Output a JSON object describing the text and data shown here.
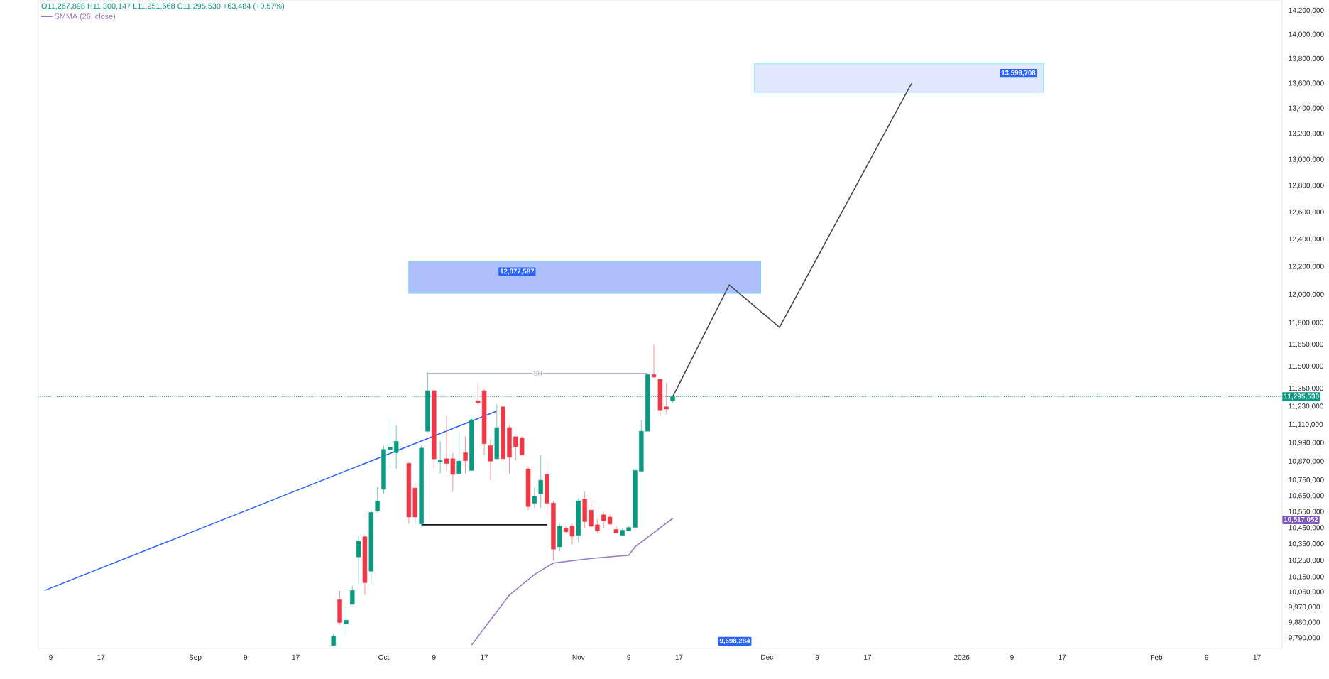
{
  "chart_data": {
    "type": "candlestick",
    "subtitle": "O11,267,898 H11,300,147 L11,251,668 C11,295,530 +63,484 (+0.57%)",
    "x": [
      "2025-09-23",
      "2025-09-24",
      "2025-09-25",
      "2025-09-26",
      "2025-09-27",
      "2025-09-28",
      "2025-09-29",
      "2025-09-30",
      "2025-10-01",
      "2025-10-02",
      "2025-10-03",
      "2025-10-05",
      "2025-10-06",
      "2025-10-07",
      "2025-10-08",
      "2025-10-09",
      "2025-10-10",
      "2025-10-11",
      "2025-10-12",
      "2025-10-13",
      "2025-10-14",
      "2025-10-15",
      "2025-10-16",
      "2025-10-17",
      "2025-10-18",
      "2025-10-19",
      "2025-10-20",
      "2025-10-21",
      "2025-10-22",
      "2025-10-23",
      "2025-10-24",
      "2025-10-25",
      "2025-10-26",
      "2025-10-27",
      "2025-10-28",
      "2025-10-29",
      "2025-10-30",
      "2025-10-31",
      "2025-11-01",
      "2025-11-02",
      "2025-11-03",
      "2025-11-04",
      "2025-11-05",
      "2025-11-06",
      "2025-11-07",
      "2025-11-08",
      "2025-11-09",
      "2025-11-10",
      "2025-11-11",
      "2025-11-12",
      "2025-11-13",
      "2025-11-14",
      "2025-11-15",
      "2025-11-16"
    ],
    "ohlc": [
      [
        9747000,
        9814000,
        9747000,
        9800000
      ],
      [
        10015000,
        10070000,
        9867000,
        9881000
      ],
      [
        9873000,
        9974000,
        9800000,
        9894000
      ],
      [
        9988000,
        10098000,
        9988000,
        10070000
      ],
      [
        10272000,
        10405000,
        10112000,
        10368000
      ],
      [
        10396000,
        10405000,
        10043000,
        10117000
      ],
      [
        10186000,
        10561000,
        10112000,
        10547000
      ],
      [
        10555000,
        10706000,
        10547000,
        10619000
      ],
      [
        10692000,
        10972000,
        10663000,
        10948000
      ],
      [
        10948000,
        11152000,
        10837000,
        10963000
      ],
      [
        10927000,
        11106000,
        10822000,
        11001000
      ],
      [
        10858000,
        10867000,
        10475000,
        10518000
      ],
      [
        10700000,
        10735000,
        10475000,
        10518000
      ],
      [
        10475000,
        10972000,
        10461000,
        10957000
      ],
      [
        11067000,
        11460000,
        11061000,
        11336000
      ],
      [
        11336000,
        11342000,
        10822000,
        10887000
      ],
      [
        10867000,
        11001000,
        10793000,
        10876000
      ],
      [
        10888000,
        11167000,
        10808000,
        10858000
      ],
      [
        10888000,
        10927000,
        10677000,
        10787000
      ],
      [
        10793000,
        11061000,
        10793000,
        10873000
      ],
      [
        10927000,
        11031000,
        10793000,
        10876000
      ],
      [
        10813000,
        11152000,
        10813000,
        11142000
      ],
      [
        11268000,
        11388000,
        11244000,
        11253000
      ],
      [
        11336000,
        11351000,
        10912000,
        10986000
      ],
      [
        10972000,
        11016000,
        10750000,
        10873000
      ],
      [
        10888000,
        11244000,
        10882000,
        11091000
      ],
      [
        11228000,
        11228000,
        10867000,
        10888000
      ],
      [
        11091000,
        11106000,
        10793000,
        10897000
      ],
      [
        11031000,
        11031000,
        10876000,
        10966000
      ],
      [
        11025000,
        11031000,
        10912000,
        10912000
      ],
      [
        10822000,
        10837000,
        10561000,
        10584000
      ],
      [
        10605000,
        10706000,
        10576000,
        10648000
      ],
      [
        10663000,
        10912000,
        10576000,
        10750000
      ],
      [
        10787000,
        10852000,
        10532000,
        10605000
      ],
      [
        10605000,
        10619000,
        10249000,
        10320000
      ],
      [
        10334000,
        10475000,
        10306000,
        10461000
      ],
      [
        10447000,
        10461000,
        10419000,
        10427000
      ],
      [
        10461000,
        10475000,
        10348000,
        10399000
      ],
      [
        10405000,
        10634000,
        10362000,
        10619000
      ],
      [
        10631000,
        10677000,
        10447000,
        10490000
      ],
      [
        10561000,
        10619000,
        10447000,
        10461000
      ],
      [
        10470000,
        10504000,
        10419000,
        10433000
      ],
      [
        10532000,
        10547000,
        10447000,
        10495000
      ],
      [
        10518000,
        10532000,
        10470000,
        10475000
      ],
      [
        10441000,
        10461000,
        10419000,
        10419000
      ],
      [
        10405000,
        10447000,
        10399000,
        10436000
      ],
      [
        10433000,
        10461000,
        10433000,
        10453000
      ],
      [
        10453000,
        10822000,
        10447000,
        10813000
      ],
      [
        10808000,
        11137000,
        10808000,
        11067000
      ],
      [
        11067000,
        11453000,
        11067000,
        11444000
      ],
      [
        11444000,
        11649000,
        11422000,
        11428000
      ],
      [
        11413000,
        11413000,
        11167000,
        11207000
      ],
      [
        11228000,
        11391000,
        11182000,
        11213000
      ],
      [
        11267898,
        11300147,
        11251668,
        11295530
      ]
    ],
    "series": [
      {
        "type": "area",
        "color": "#aebff9",
        "x": [
          "2025-10-05",
          "2025-11-30"
        ],
        "values": [
          null,
          null
        ],
        "lower": [
          12010000,
          12010000
        ],
        "upper": [
          12240000,
          12240000
        ]
      },
      {
        "type": "area",
        "color": "#e1e8fd",
        "x": [
          "2025-11-29",
          "2026-01-14"
        ],
        "values": [
          null,
          null
        ],
        "lower": [
          13530000,
          13530000
        ],
        "upper": [
          13760000,
          13760000
        ]
      },
      {
        "type": "line",
        "color": "#2962ff",
        "x": [
          "2025-08-08",
          "2025-10-19"
        ],
        "values": [
          10070000,
          11200000
        ]
      },
      {
        "type": "line",
        "name": "SMMA (26, close)",
        "color": "#9575cd",
        "x": [
          "2025-10-15",
          "2025-10-21",
          "2025-10-25",
          "2025-10-28",
          "2025-11-03",
          "2025-11-09",
          "2025-11-10",
          "2025-11-16"
        ],
        "values": [
          9750000,
          10043000,
          10166000,
          10235000,
          10263000,
          10283000,
          10334000,
          10510000
        ]
      },
      {
        "type": "line",
        "name": "SH",
        "color": "#a9b4d6",
        "x": [
          "2025-10-08",
          "2025-11-12"
        ],
        "values": [
          11453000,
          11453000
        ]
      },
      {
        "type": "line",
        "color": "#131722",
        "x": [
          "2025-10-07",
          "2025-10-27"
        ],
        "values": [
          10470000,
          10470000
        ]
      },
      {
        "type": "line",
        "color": "#434651",
        "x": [
          "2025-11-16",
          "2025-11-25",
          "2025-12-03",
          "2025-12-24"
        ],
        "values": [
          11295530,
          12070000,
          11770000,
          13600000
        ]
      }
    ],
    "ref_lines": [
      {
        "axis": "y",
        "value": 11295530,
        "label": "11,295,530",
        "color": "#089981",
        "line_style": "dotted"
      }
    ],
    "annotations": [
      "12,077,587",
      "13,599,708",
      "10,517,052",
      "9,698,284"
    ],
    "log": true,
    "legend": "top left",
    "xlim": [
      "2025-08-07",
      "2026-02-21"
    ],
    "ylim": [
      9730000,
      14290000
    ],
    "xticks": [
      {
        "value": "2025-08-09",
        "label": "9"
      },
      {
        "value": "2025-08-17",
        "label": "17"
      },
      {
        "value": "2025-09-01",
        "label": "Sep"
      },
      {
        "value": "2025-09-09",
        "label": "9"
      },
      {
        "value": "2025-09-17",
        "label": "17"
      },
      {
        "value": "2025-10-01",
        "label": "Oct"
      },
      {
        "value": "2025-10-09",
        "label": "9"
      },
      {
        "value": "2025-10-17",
        "label": "17"
      },
      {
        "value": "2025-11-01",
        "label": "Nov"
      },
      {
        "value": "2025-11-09",
        "label": "9"
      },
      {
        "value": "2025-11-17",
        "label": "17"
      },
      {
        "value": "2025-12-01",
        "label": "Dec"
      },
      {
        "value": "2025-12-09",
        "label": "9"
      },
      {
        "value": "2025-12-17",
        "label": "17"
      },
      {
        "value": "2026-01-01",
        "label": "2026"
      },
      {
        "value": "2026-01-09",
        "label": "9"
      },
      {
        "value": "2026-01-17",
        "label": "17"
      },
      {
        "value": "2026-02-01",
        "label": "Feb"
      },
      {
        "value": "2026-02-09",
        "label": "9"
      },
      {
        "value": "2026-02-17",
        "label": "17"
      }
    ],
    "yticks": [
      {
        "value": 14200000,
        "label": "14,200,000"
      },
      {
        "value": 14000000,
        "label": "14,000,000"
      },
      {
        "value": 13800000,
        "label": "13,800,000"
      },
      {
        "value": 13600000,
        "label": "13,600,000"
      },
      {
        "value": 13400000,
        "label": "13,400,000"
      },
      {
        "value": 13200000,
        "label": "13,200,000"
      },
      {
        "value": 13000000,
        "label": "13,000,000"
      },
      {
        "value": 12800000,
        "label": "12,800,000"
      },
      {
        "value": 12600000,
        "label": "12,600,000"
      },
      {
        "value": 12400000,
        "label": "12,400,000"
      },
      {
        "value": 12200000,
        "label": "12,200,000"
      },
      {
        "value": 12000000,
        "label": "12,000,000"
      },
      {
        "value": 11800000,
        "label": "11,800,000"
      },
      {
        "value": 11650000,
        "label": "11,650,000"
      },
      {
        "value": 11500000,
        "label": "11,500,000"
      },
      {
        "value": 11350000,
        "label": "11,350,000"
      },
      {
        "value": 11230000,
        "label": "11,230,000"
      },
      {
        "value": 11110000,
        "label": "11,110,000"
      },
      {
        "value": 10990000,
        "label": "10,990,000"
      },
      {
        "value": 10870000,
        "label": "10,870,000"
      },
      {
        "value": 10750000,
        "label": "10,750,000"
      },
      {
        "value": 10650000,
        "label": "10,650,000"
      },
      {
        "value": 10550000,
        "label": "10,550,000"
      },
      {
        "value": 10450000,
        "label": "10,450,000"
      },
      {
        "value": 10350000,
        "label": "10,350,000"
      },
      {
        "value": 10250000,
        "label": "10,250,000"
      },
      {
        "value": 10150000,
        "label": "10,150,000"
      },
      {
        "value": 10060000,
        "label": "10,060,000"
      },
      {
        "value": 9970000,
        "label": "9,970,000"
      },
      {
        "value": 9880000,
        "label": "9,880,000"
      },
      {
        "value": 9790000,
        "label": "9,790,000"
      }
    ]
  }
}
